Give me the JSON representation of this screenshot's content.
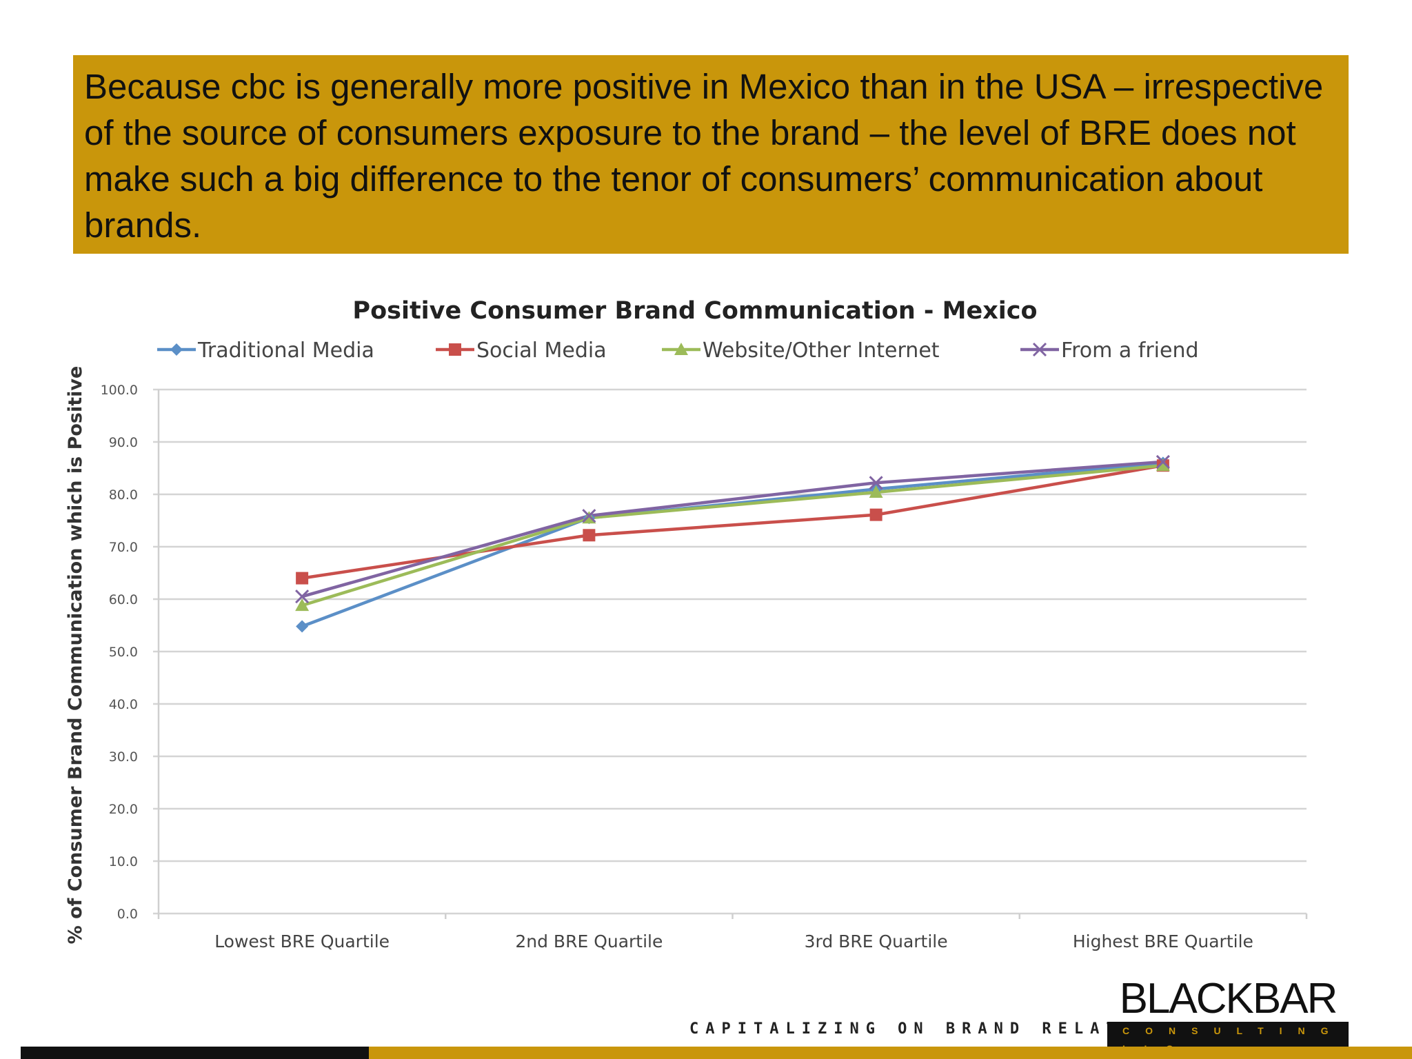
{
  "headline": "Because cbc is generally more positive in Mexico than in the USA – irrespective of the source of consumers exposure to the brand – the level of BRE does not make such a big difference to the tenor of consumers’ communication about brands.",
  "chart_data": {
    "type": "line",
    "title": "Positive Consumer Brand Communication - Mexico",
    "ylabel": "% of Consumer Brand Communication which is Positive",
    "xlabel": "",
    "categories": [
      "Lowest BRE Quartile",
      "2nd BRE Quartile",
      "3rd BRE Quartile",
      "Highest BRE Quartile"
    ],
    "ylim": [
      0,
      100
    ],
    "yticks": [
      "0.0",
      "10.0",
      "20.0",
      "30.0",
      "40.0",
      "50.0",
      "60.0",
      "70.0",
      "80.0",
      "90.0",
      "100.0"
    ],
    "grid": true,
    "legend_position": "top",
    "series": [
      {
        "name": "Traditional Media",
        "values": [
          54.8,
          75.5,
          81.0,
          86.0
        ],
        "color": "#5b8fc7",
        "marker": "diamond"
      },
      {
        "name": "Social Media",
        "values": [
          64.0,
          72.2,
          76.1,
          85.5
        ],
        "color": "#c94f4b",
        "marker": "square"
      },
      {
        "name": "Website/Other Internet",
        "values": [
          58.8,
          75.5,
          80.4,
          85.5
        ],
        "color": "#9cbb59",
        "marker": "triangle"
      },
      {
        "name": "From a friend",
        "values": [
          60.5,
          75.9,
          82.2,
          86.2
        ],
        "color": "#8064a2",
        "marker": "x"
      }
    ]
  },
  "branding": {
    "logo_main": "BLACKBAR",
    "logo_sub": "CONSULTING LLC",
    "tagline": "CAPITALIZING ON BRAND RELATIONSHIPS."
  }
}
